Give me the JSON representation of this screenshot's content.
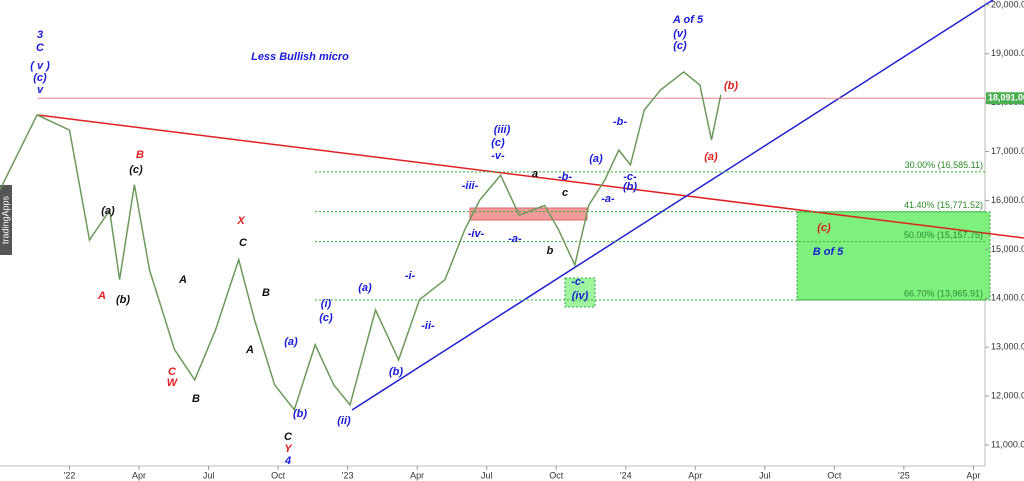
{
  "chart_data": {
    "type": "line",
    "watermark": "tradingApps",
    "x": [
      -3,
      -1.4,
      0,
      0.86,
      1.73,
      2.16,
      2.8,
      3.45,
      4.53,
      5.4,
      6.3,
      7.3,
      7.98,
      8.85,
      9.7,
      10.6,
      11.4,
      12.1,
      13.2,
      14.2,
      15.1,
      16.2,
      17.05,
      17.7,
      18.6,
      19.4,
      20.5,
      21.1,
      21.8,
      22.4,
      23.1,
      23.7,
      24.2,
      24.8,
      25.5,
      26.5,
      27.2,
      27.7,
      28.1
    ],
    "series": [
      {
        "color": "#6b9a5a",
        "values": [
          16220,
          17750,
          17440,
          15190,
          15800,
          14380,
          16320,
          14580,
          12950,
          12330,
          13350,
          14790,
          13560,
          12230,
          11720,
          13050,
          12230,
          11820,
          13760,
          12740,
          13970,
          14380,
          15400,
          16010,
          16520,
          15700,
          15900,
          15400,
          14680,
          15900,
          16420,
          17030,
          16730,
          17850,
          18260,
          18630,
          18360,
          17240,
          18160
        ]
      }
    ],
    "xlim": [
      -3,
      39.5
    ],
    "xticks": [
      {
        "value": 0,
        "label": "'22"
      },
      {
        "value": 3,
        "label": "Apr"
      },
      {
        "value": 6,
        "label": "Jul"
      },
      {
        "value": 9,
        "label": "Oct"
      },
      {
        "value": 12,
        "label": "'23"
      },
      {
        "value": 15,
        "label": "Apr"
      },
      {
        "value": 18,
        "label": "Jul"
      },
      {
        "value": 21,
        "label": "Oct"
      },
      {
        "value": 24,
        "label": "'24"
      },
      {
        "value": 27,
        "label": "Apr"
      },
      {
        "value": 30,
        "label": "Jul"
      },
      {
        "value": 33,
        "label": "Oct"
      },
      {
        "value": 36,
        "label": "'25"
      },
      {
        "value": 39,
        "label": "Apr"
      }
    ],
    "ylim": [
      10570,
      20100
    ],
    "yticks": [
      {
        "value": 11000,
        "label": "11,000.00"
      },
      {
        "value": 12000,
        "label": "12,000.00"
      },
      {
        "value": 13000,
        "label": "13,000.00"
      },
      {
        "value": 14000,
        "label": "14,000.00"
      },
      {
        "value": 15000,
        "label": "15,000.00"
      },
      {
        "value": 16000,
        "label": "16,000.00"
      },
      {
        "value": 17000,
        "label": "17,000.00"
      },
      {
        "value": 18000,
        "label": "18,000.00"
      },
      {
        "value": 19000,
        "label": "19,000.00"
      },
      {
        "value": 20000,
        "label": "20,000.00"
      }
    ],
    "price_line": {
      "value": 18091,
      "label": "18,091.00"
    },
    "fib_levels": [
      {
        "value": 16585.11,
        "label": "30.00% (16,585.11)"
      },
      {
        "value": 15771.52,
        "label": "41.40% (15,771.52)"
      },
      {
        "value": 15157.75,
        "label": "50.00% (15,157.75)"
      },
      {
        "value": 13965.91,
        "label": "66.70% (13,965.91)"
      }
    ],
    "annotations": [
      {
        "text": "3",
        "color": "#1a1adb"
      },
      {
        "text": "C",
        "color": "#1a1adb"
      },
      {
        "text": "( v )",
        "color": "#1a1adb"
      },
      {
        "text": "(c)",
        "color": "#1a1adb"
      },
      {
        "text": "v",
        "color": "#1a1adb"
      },
      {
        "text": "Less Bullish micro",
        "color": "#1a1adb"
      },
      {
        "text": "A of 5",
        "color": "#1a1adb"
      },
      {
        "text": "(v)",
        "color": "#1a1adb"
      },
      {
        "text": "(c)",
        "color": "#1a1adb"
      },
      {
        "text": "(iii)",
        "color": "#1a1adb"
      },
      {
        "text": "(c)",
        "color": "#1a1adb"
      },
      {
        "text": "-v-",
        "color": "#1a1adb"
      },
      {
        "text": "-iii-",
        "color": "#1a1adb"
      },
      {
        "text": "-iv-",
        "color": "#1a1adb"
      },
      {
        "text": "-a-",
        "color": "#1a1adb"
      },
      {
        "text": "-b-",
        "color": "#1a1adb"
      },
      {
        "text": "(a)",
        "color": "#1a1adb"
      },
      {
        "text": "-b-",
        "color": "#1a1adb"
      },
      {
        "text": "-c-",
        "color": "#1a1adb"
      },
      {
        "text": "(b)",
        "color": "#1a1adb"
      },
      {
        "text": "-a-",
        "color": "#1a1adb"
      },
      {
        "text": "-c-",
        "color": "#1a1adb"
      },
      {
        "text": "(iv)",
        "color": "#1a1adb"
      },
      {
        "text": "(a)",
        "color": "#1a1adb"
      },
      {
        "text": "-i-",
        "color": "#1a1adb"
      },
      {
        "text": "-ii-",
        "color": "#1a1adb"
      },
      {
        "text": "(i)",
        "color": "#1a1adb"
      },
      {
        "text": "(c)",
        "color": "#1a1adb"
      },
      {
        "text": "(a)",
        "color": "#1a1adb"
      },
      {
        "text": "(b)",
        "color": "#1a1adb"
      },
      {
        "text": "(b)",
        "color": "#1a1adb"
      },
      {
        "text": "(ii)",
        "color": "#1a1adb"
      },
      {
        "text": "4",
        "color": "#1a1adb"
      },
      {
        "text": "B of 5",
        "color": "#1a1adb"
      },
      {
        "text": "B",
        "color": "#e02020"
      },
      {
        "text": "X",
        "color": "#e02020"
      },
      {
        "text": "A",
        "color": "#e02020"
      },
      {
        "text": "C",
        "color": "#e02020"
      },
      {
        "text": "W",
        "color": "#e02020"
      },
      {
        "text": "Y",
        "color": "#e02020"
      },
      {
        "text": "(b)",
        "color": "#e02020"
      },
      {
        "text": "(a)",
        "color": "#e02020"
      },
      {
        "text": "(c)",
        "color": "#e02020"
      },
      {
        "text": "(c)",
        "color": "#111111"
      },
      {
        "text": "(a)",
        "color": "#111111"
      },
      {
        "text": "(b)",
        "color": "#111111"
      },
      {
        "text": "A",
        "color": "#111111"
      },
      {
        "text": "C",
        "color": "#111111"
      },
      {
        "text": "B",
        "color": "#111111"
      },
      {
        "text": "A",
        "color": "#111111"
      },
      {
        "text": "B",
        "color": "#111111"
      },
      {
        "text": "C",
        "color": "#111111"
      },
      {
        "text": "a",
        "color": "#111111"
      },
      {
        "text": "c",
        "color": "#111111"
      },
      {
        "text": "b",
        "color": "#111111"
      }
    ]
  }
}
